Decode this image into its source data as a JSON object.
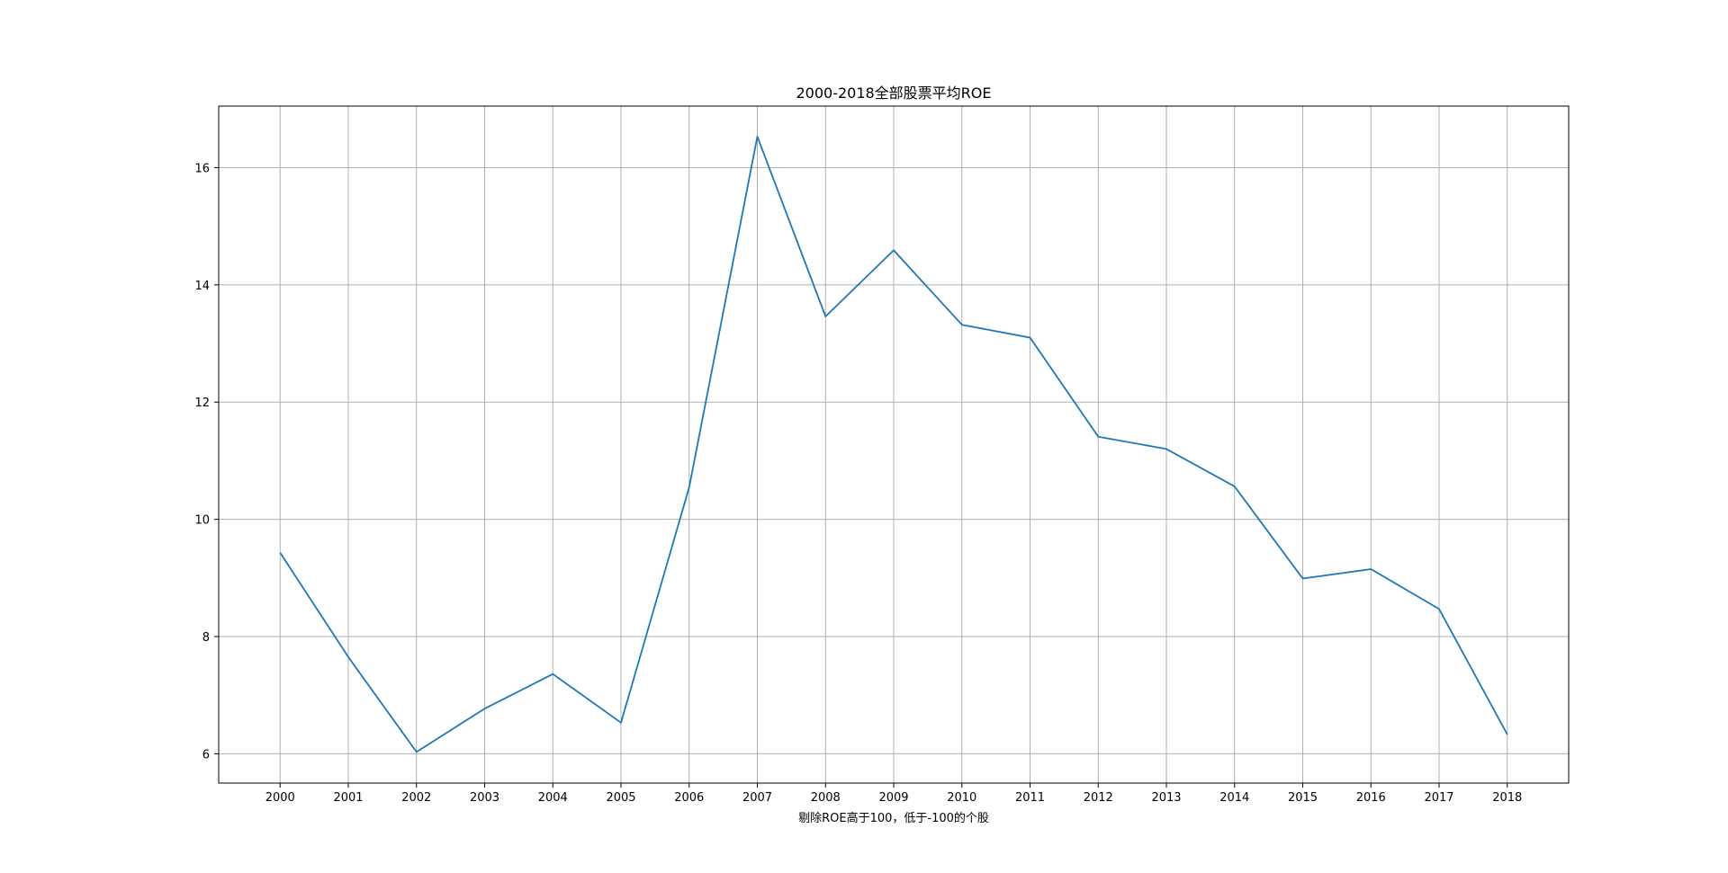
{
  "chart_data": {
    "type": "line",
    "title": "2000-2018全部股票平均ROE",
    "xlabel": "剔除ROE高于100，低于-100的个股",
    "ylabel": "",
    "x": [
      "2000",
      "2001",
      "2002",
      "2003",
      "2004",
      "2005",
      "2006",
      "2007",
      "2008",
      "2009",
      "2010",
      "2011",
      "2012",
      "2013",
      "2014",
      "2015",
      "2016",
      "2017",
      "2018"
    ],
    "series": [
      {
        "values": [
          9.43,
          7.65,
          6.03,
          6.77,
          7.36,
          6.53,
          10.55,
          16.53,
          13.46,
          14.59,
          13.32,
          13.1,
          11.41,
          11.2,
          10.56,
          8.99,
          9.15,
          8.47,
          6.33
        ],
        "color": "#1f77b4"
      }
    ],
    "yticks": [
      6,
      8,
      10,
      12,
      14,
      16
    ],
    "ylim": [
      5.5,
      17.05
    ],
    "grid": true,
    "legend": "none"
  }
}
